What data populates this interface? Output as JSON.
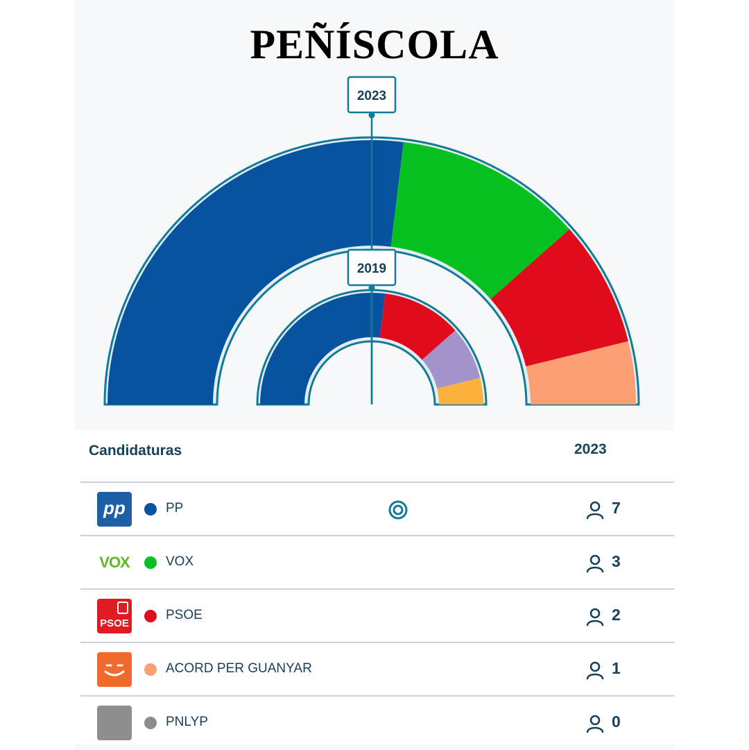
{
  "title": "PEÑÍSCOLA",
  "chart_data": {
    "type": "hemicycle",
    "elections": [
      {
        "year": "2023",
        "total_seats": 13,
        "seats": [
          {
            "party": "PP",
            "seats": 7
          },
          {
            "party": "VOX",
            "seats": 3
          },
          {
            "party": "PSOE",
            "seats": 2
          },
          {
            "party": "ACORD PER GUANYAR",
            "seats": 1
          },
          {
            "party": "PNLYP",
            "seats": 0
          }
        ]
      },
      {
        "year": "2019",
        "total_seats": 13,
        "seats": [
          {
            "party": "PP",
            "seats": 7
          },
          {
            "party": "PSOE",
            "seats": 3
          },
          {
            "party": "lilac",
            "seats": 2
          },
          {
            "party": "orange",
            "seats": 1
          }
        ]
      }
    ],
    "colors": {
      "PP": "#0753a0",
      "VOX": "#06c11f",
      "PSOE": "#e00c1b",
      "ACORD PER GUANYAR": "#fc9f74",
      "PNLYP": "#8c8c8c",
      "lilac": "#a393cb",
      "orange": "#fbb13c"
    }
  },
  "table": {
    "header_candidaturas": "Candidaturas",
    "header_year": "2023",
    "rows": [
      {
        "name": "PP",
        "seats": "7",
        "color": "#0753a0",
        "logo": "pp-logo",
        "logo_text": "pp",
        "majority": true
      },
      {
        "name": "VOX",
        "seats": "3",
        "color": "#06c11f",
        "logo": "vox-logo",
        "logo_text": "VOX",
        "majority": false
      },
      {
        "name": "PSOE",
        "seats": "2",
        "color": "#e00c1b",
        "logo": "psoe-logo",
        "logo_text": "PSOE",
        "majority": false
      },
      {
        "name": "ACORD PER GUANYAR",
        "seats": "1",
        "color": "#fc9f74",
        "logo": "acord-logo",
        "logo_text": "",
        "majority": false
      },
      {
        "name": "PNLYP",
        "seats": "0",
        "color": "#8c8c8c",
        "logo": "pnlyp-logo",
        "logo_text": "",
        "majority": false
      }
    ]
  },
  "colors": {
    "accent": "#127a97",
    "text": "#17405a",
    "divider": "#c9d3da"
  }
}
